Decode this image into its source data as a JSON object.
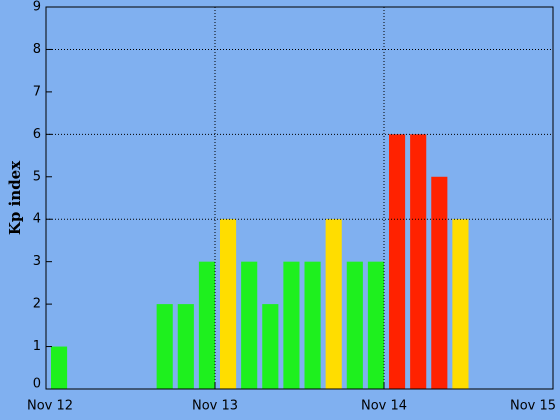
{
  "chart_data": {
    "type": "bar",
    "ylabel": "Kp index",
    "x": [
      0,
      0.625,
      0.75,
      0.875,
      1,
      1.125,
      1.25,
      1.375,
      1.5,
      1.625,
      1.75,
      1.875,
      2,
      2.125,
      2.25,
      2.375
    ],
    "values": [
      1,
      2,
      2,
      3,
      4,
      3,
      2,
      3,
      3,
      4,
      3,
      3,
      6,
      6,
      5,
      4
    ],
    "colors": [
      "#1ef01e",
      "#1ef01e",
      "#1ef01e",
      "#1ef01e",
      "#ffdd00",
      "#1ef01e",
      "#1ef01e",
      "#1ef01e",
      "#1ef01e",
      "#ffdd00",
      "#1ef01e",
      "#1ef01e",
      "#ff2200",
      "#ff2200",
      "#ff2200",
      "#ffdd00"
    ],
    "xlim": [
      0,
      3
    ],
    "xticks": [
      {
        "value": 0,
        "label": "Nov 12"
      },
      {
        "value": 1,
        "label": "Nov 13"
      },
      {
        "value": 2,
        "label": "Nov 14"
      },
      {
        "value": 3,
        "label": "Nov 15"
      }
    ],
    "ylim": [
      0,
      9
    ],
    "yticks": [
      0,
      1,
      2,
      3,
      4,
      5,
      6,
      7,
      8,
      9
    ],
    "xgrid": [
      1,
      2
    ],
    "ygrid": [
      4,
      6,
      8
    ]
  }
}
